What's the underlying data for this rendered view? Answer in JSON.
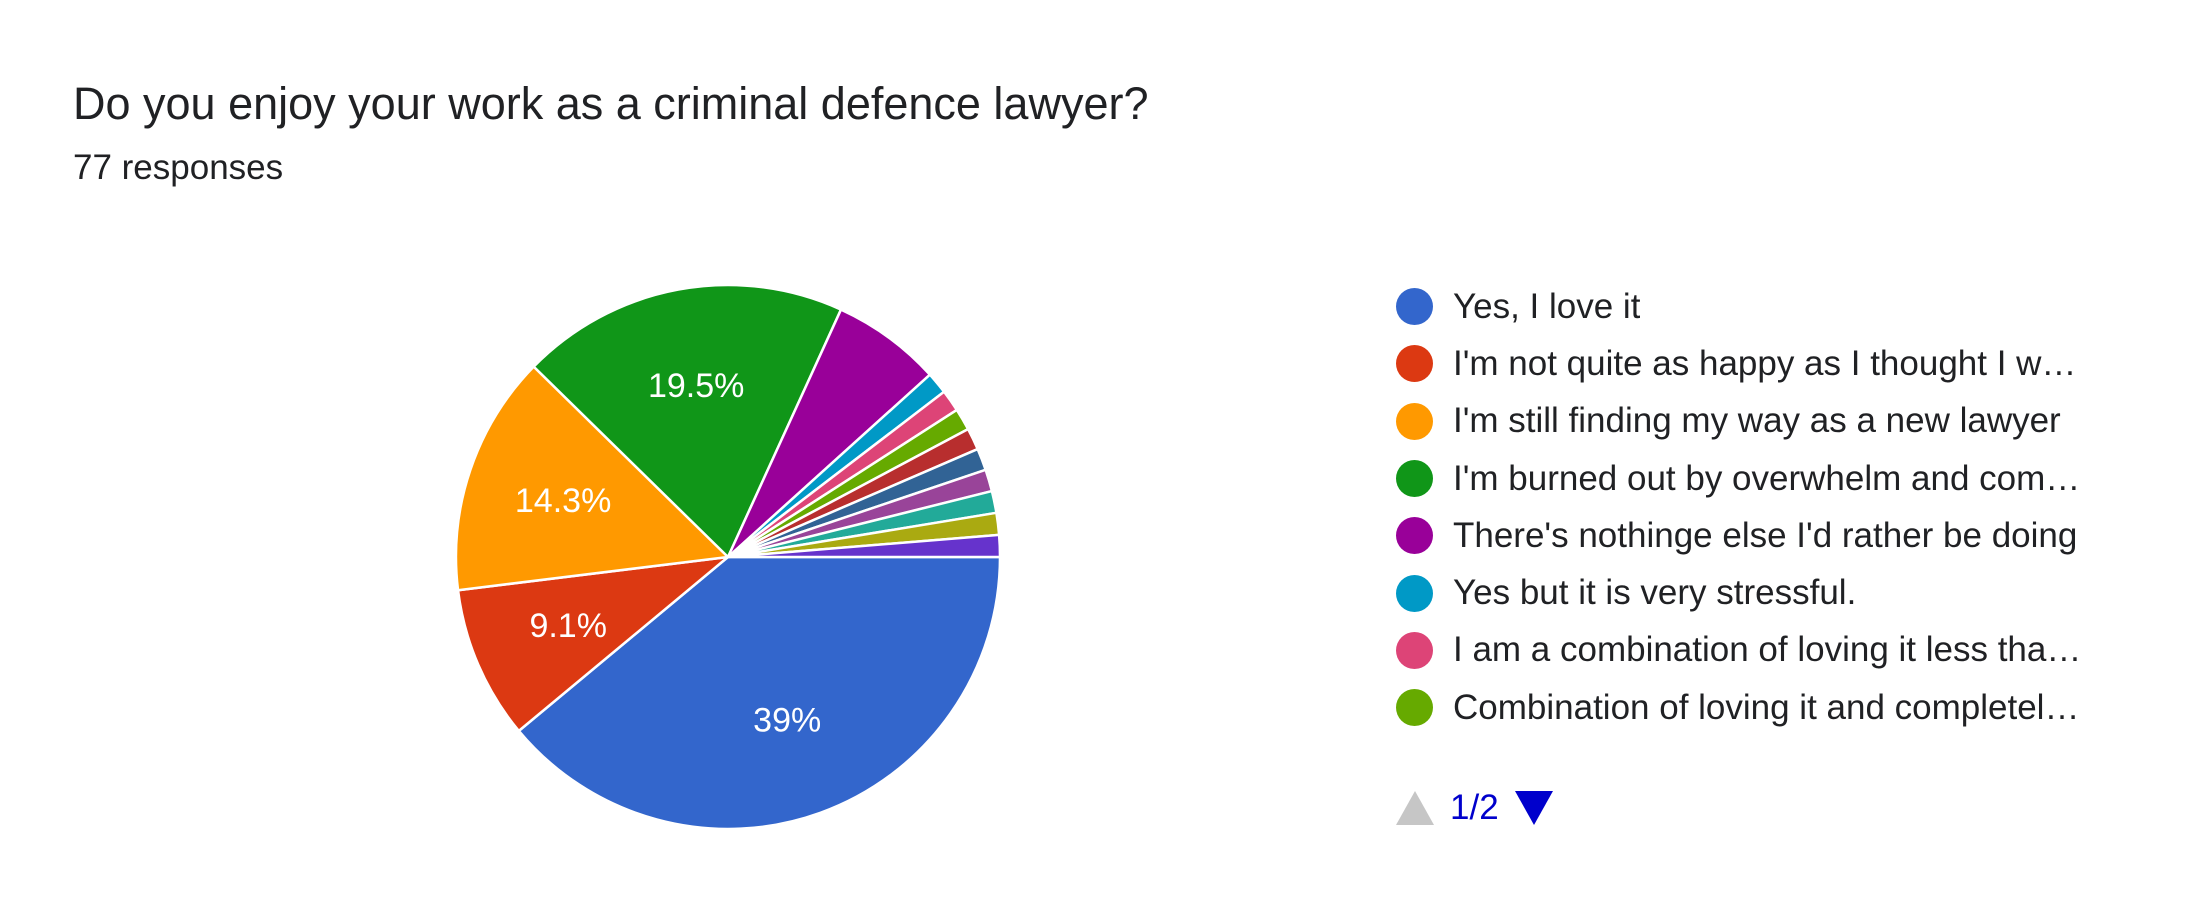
{
  "header": {
    "title": "Do you enjoy your work as a criminal defence lawyer?",
    "responses": "77 responses"
  },
  "legend": {
    "items": [
      "Yes, I love it",
      "I'm not quite as happy as I thought I w…",
      "I'm still finding my way as a new lawyer",
      "I'm burned out by overwhelm and com…",
      "There's nothinge else I'd rather be doing",
      "Yes but it is very stressful.",
      "I am a combination of loving it less tha…",
      "Combination of loving it and completel…"
    ],
    "page": "1/2"
  },
  "chart_data": {
    "type": "pie",
    "title": "Do you enjoy your work as a criminal defence lawyer?",
    "subtitle": "77 responses",
    "total": 77,
    "slices": [
      {
        "label": "Yes, I love it",
        "count": 30,
        "percent": "39%",
        "color": "#3366cc"
      },
      {
        "label": "I'm not quite as happy as I thought I w…",
        "count": 7,
        "percent": "9.1%",
        "color": "#dc3912"
      },
      {
        "label": "I'm still finding my way as a new lawyer",
        "count": 11,
        "percent": "14.3%",
        "color": "#ff9900"
      },
      {
        "label": "I'm burned out by overwhelm and com…",
        "count": 15,
        "percent": "19.5%",
        "color": "#109618"
      },
      {
        "label": "There's nothinge else I'd rather be doing",
        "count": 5,
        "percent": "",
        "color": "#990099"
      },
      {
        "label": "Yes but it is very stressful.",
        "count": 1,
        "percent": "",
        "color": "#0099c6"
      },
      {
        "label": "I am a combination of loving it less tha…",
        "count": 1,
        "percent": "",
        "color": "#dd4477"
      },
      {
        "label": "Combination of loving it and completel…",
        "count": 1,
        "percent": "",
        "color": "#66aa00"
      },
      {
        "label": "",
        "count": 1,
        "percent": "",
        "color": "#b82e2e"
      },
      {
        "label": "",
        "count": 1,
        "percent": "",
        "color": "#316395"
      },
      {
        "label": "",
        "count": 1,
        "percent": "",
        "color": "#994499"
      },
      {
        "label": "",
        "count": 1,
        "percent": "",
        "color": "#22aa99"
      },
      {
        "label": "",
        "count": 1,
        "percent": "",
        "color": "#aaaa11"
      },
      {
        "label": "",
        "count": 1,
        "percent": "",
        "color": "#6633cc"
      }
    ],
    "legend_position": "right"
  }
}
